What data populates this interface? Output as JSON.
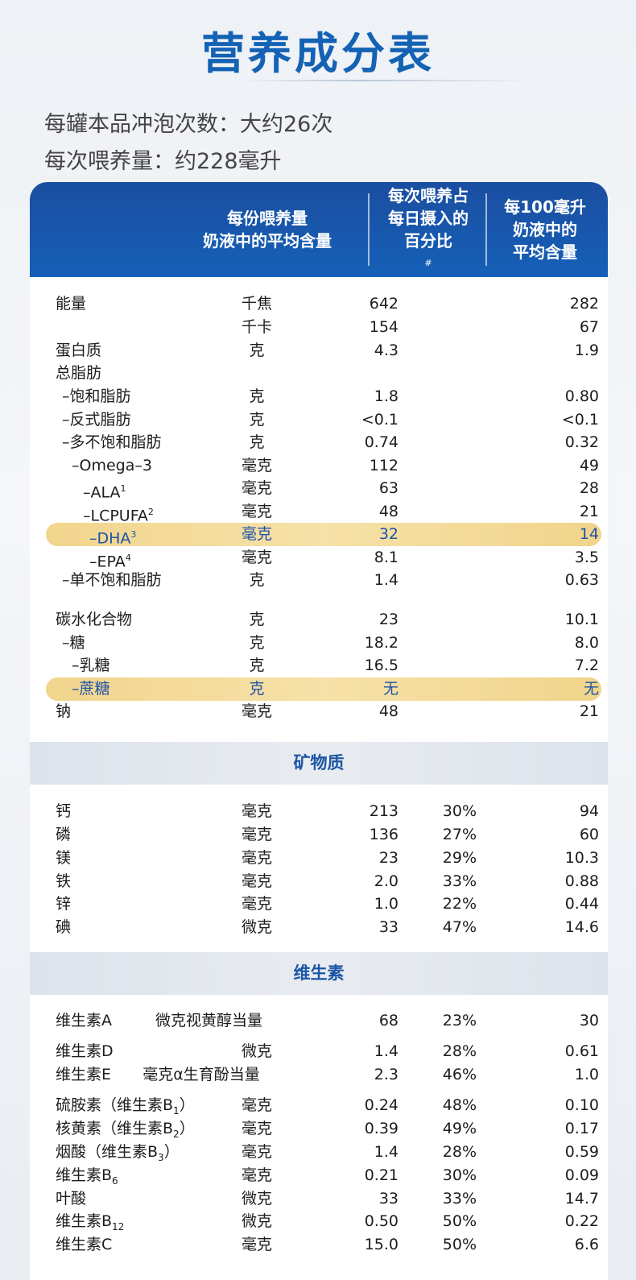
{
  "title": "营养成分表",
  "info": {
    "servings": "每罐本品冲泡次数：大约26次",
    "per_serving": "每次喂养量：约228毫升"
  },
  "header": {
    "col1_line1": "每份喂养量",
    "col1_line2": "奶液中的平均含量",
    "col2_line1": "每次喂养占",
    "col2_line2": "每日摄入的",
    "col2_line3": "百分比",
    "col2_mark": "#",
    "col3_line1": "每100毫升",
    "col3_line2": "奶液中的",
    "col3_line3": "平均含量"
  },
  "nutrients": [
    {
      "name": "能量",
      "unit": "千焦",
      "value": "642",
      "pct": "",
      "per100": "282"
    },
    {
      "name": "",
      "unit": "千卡",
      "value": "154",
      "pct": "",
      "per100": "67"
    },
    {
      "name": "蛋白质",
      "unit": "克",
      "value": "4.3",
      "pct": "",
      "per100": "1.9"
    },
    {
      "name": "总脂肪",
      "unit": "",
      "value": "",
      "pct": "",
      "per100": ""
    },
    {
      "name": "–饱和脂肪",
      "unit": "克",
      "value": "1.8",
      "pct": "",
      "per100": "0.80"
    },
    {
      "name": "–反式脂肪",
      "unit": "克",
      "value": "<0.1",
      "pct": "",
      "per100": "<0.1"
    },
    {
      "name": "–多不饱和脂肪",
      "unit": "克",
      "value": "0.74",
      "pct": "",
      "per100": "0.32"
    },
    {
      "name": "–Omega–3",
      "unit": "毫克",
      "value": "112",
      "pct": "",
      "per100": "49"
    },
    {
      "name": "–ALA",
      "sup": "1",
      "unit": "毫克",
      "value": "63",
      "pct": "",
      "per100": "28"
    },
    {
      "name": "–LCPUFA",
      "sup": "2",
      "unit": "毫克",
      "value": "48",
      "pct": "",
      "per100": "21"
    },
    {
      "name": "–DHA",
      "sup": "3",
      "unit": "毫克",
      "value": "32",
      "pct": "",
      "per100": "14"
    },
    {
      "name": "–EPA",
      "sup": "4",
      "unit": "毫克",
      "value": "8.1",
      "pct": "",
      "per100": "3.5"
    },
    {
      "name": "–单不饱和脂肪",
      "unit": "克",
      "value": "1.4",
      "pct": "",
      "per100": "0.63"
    },
    {
      "name": "碳水化合物",
      "unit": "克",
      "value": "23",
      "pct": "",
      "per100": "10.1"
    },
    {
      "name": "–糖",
      "unit": "克",
      "value": "18.2",
      "pct": "",
      "per100": "8.0"
    },
    {
      "name": "–乳糖",
      "unit": "克",
      "value": "16.5",
      "pct": "",
      "per100": "7.2"
    },
    {
      "name": "–蔗糖",
      "unit": "克",
      "value": "无",
      "pct": "",
      "per100": "无"
    },
    {
      "name": "钠",
      "unit": "毫克",
      "value": "48",
      "pct": "",
      "per100": "21"
    }
  ],
  "minerals_title": "矿物质",
  "minerals": [
    {
      "name": "钙",
      "unit": "毫克",
      "value": "213",
      "pct": "30%",
      "per100": "94"
    },
    {
      "name": "磷",
      "unit": "毫克",
      "value": "136",
      "pct": "27%",
      "per100": "60"
    },
    {
      "name": "镁",
      "unit": "毫克",
      "value": "23",
      "pct": "29%",
      "per100": "10.3"
    },
    {
      "name": "铁",
      "unit": "毫克",
      "value": "2.0",
      "pct": "33%",
      "per100": "0.88"
    },
    {
      "name": "锌",
      "unit": "毫克",
      "value": "1.0",
      "pct": "22%",
      "per100": "0.44"
    },
    {
      "name": "碘",
      "unit": "微克",
      "value": "33",
      "pct": "47%",
      "per100": "14.6"
    }
  ],
  "vitamins_title": "维生素",
  "vitamins": [
    {
      "name": "维生素A",
      "unit": "微克视黄醇当量",
      "value": "68",
      "pct": "23%",
      "per100": "30"
    },
    {
      "name": "维生素D",
      "unit": "微克",
      "value": "1.4",
      "pct": "28%",
      "per100": "0.61"
    },
    {
      "name": "维生素E",
      "unit": "毫克α生育酚当量",
      "value": "2.3",
      "pct": "46%",
      "per100": "1.0"
    },
    {
      "name": "硫胺素（维生素B",
      "sub": "1",
      "tail": "）",
      "unit": "毫克",
      "value": "0.24",
      "pct": "48%",
      "per100": "0.10"
    },
    {
      "name": "核黄素（维生素B",
      "sub": "2",
      "tail": "）",
      "unit": "毫克",
      "value": "0.39",
      "pct": "49%",
      "per100": "0.17"
    },
    {
      "name": "烟酸（维生素B",
      "sub": "3",
      "tail": "）",
      "unit": "毫克",
      "value": "1.4",
      "pct": "28%",
      "per100": "0.59"
    },
    {
      "name": "维生素B",
      "sub": "6",
      "tail": "",
      "unit": "毫克",
      "value": "0.21",
      "pct": "30%",
      "per100": "0.09"
    },
    {
      "name": "叶酸",
      "unit": "微克",
      "value": "33",
      "pct": "33%",
      "per100": "14.7"
    },
    {
      "name": "维生素B",
      "sub": "12",
      "tail": "",
      "unit": "微克",
      "value": "0.50",
      "pct": "50%",
      "per100": "0.22"
    },
    {
      "name": "维生素C",
      "unit": "毫克",
      "value": "15.0",
      "pct": "50%",
      "per100": "6.6"
    }
  ]
}
